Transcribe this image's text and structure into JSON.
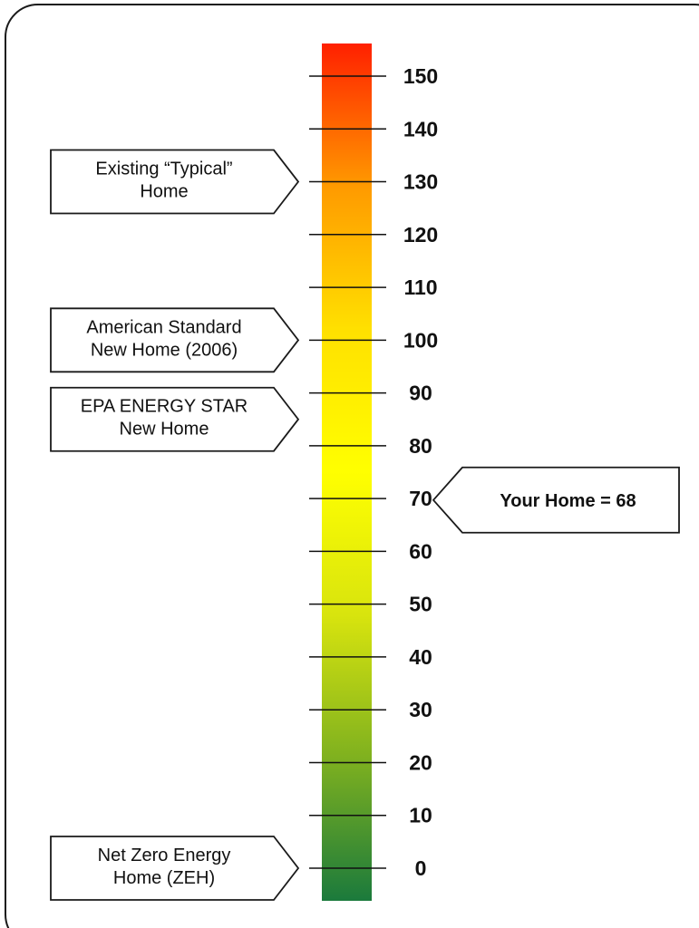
{
  "chart_data": {
    "type": "table",
    "scale": {
      "min": 0,
      "max": 150,
      "ticks": [
        0,
        10,
        20,
        30,
        40,
        50,
        60,
        70,
        80,
        90,
        100,
        110,
        120,
        130,
        140,
        150
      ],
      "gradient_colors": [
        "#1b7a3c",
        "#7fb11f",
        "#d8e40e",
        "#ffff00",
        "#ffe000",
        "#ff9a00",
        "#ff2000"
      ]
    },
    "left_callouts": [
      {
        "lines": [
          "Existing “Typical”",
          "Home"
        ],
        "value": 130
      },
      {
        "lines": [
          "American Standard",
          "New Home (2006)"
        ],
        "value": 100
      },
      {
        "lines": [
          "EPA ENERGY STAR",
          "New Home"
        ],
        "value": 85
      },
      {
        "lines": [
          "Net Zero Energy",
          "Home (ZEH)"
        ],
        "value": 0
      }
    ],
    "right_callout": {
      "label": "Your Home = 68",
      "value": 68
    }
  }
}
